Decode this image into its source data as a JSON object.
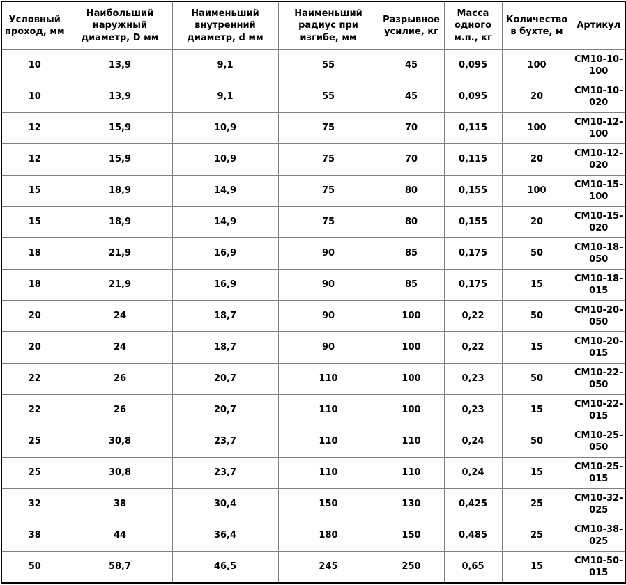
{
  "table": {
    "columns": [
      {
        "key": "bore",
        "label": "Условный проход, мм"
      },
      {
        "key": "outer-diameter",
        "label": "Наибольший наружный диаметр, D мм"
      },
      {
        "key": "inner-diameter",
        "label": "Наименьший внутренний диаметр, d мм"
      },
      {
        "key": "bend-radius",
        "label": "Наименьший радиус при изгибе, мм"
      },
      {
        "key": "breaking-force",
        "label": "Разрывное усилие, кг"
      },
      {
        "key": "mass-per-meter",
        "label": "Масса одного м.п., кг"
      },
      {
        "key": "coil-length",
        "label": "Количество в бухте, м"
      },
      {
        "key": "sku",
        "label": "Артикул"
      }
    ],
    "rows": [
      [
        "10",
        "13,9",
        "9,1",
        "55",
        "45",
        "0,095",
        "100",
        "СМ10-10-100"
      ],
      [
        "10",
        "13,9",
        "9,1",
        "55",
        "45",
        "0,095",
        "20",
        "СМ10-10-020"
      ],
      [
        "12",
        "15,9",
        "10,9",
        "75",
        "70",
        "0,115",
        "100",
        "СМ10-12-100"
      ],
      [
        "12",
        "15,9",
        "10,9",
        "75",
        "70",
        "0,115",
        "20",
        "СМ10-12-020"
      ],
      [
        "15",
        "18,9",
        "14,9",
        "75",
        "80",
        "0,155",
        "100",
        "СМ10-15-100"
      ],
      [
        "15",
        "18,9",
        "14,9",
        "75",
        "80",
        "0,155",
        "20",
        "СМ10-15-020"
      ],
      [
        "18",
        "21,9",
        "16,9",
        "90",
        "85",
        "0,175",
        "50",
        "СМ10-18-050"
      ],
      [
        "18",
        "21,9",
        "16,9",
        "90",
        "85",
        "0,175",
        "15",
        "СМ10-18-015"
      ],
      [
        "20",
        "24",
        "18,7",
        "90",
        "100",
        "0,22",
        "50",
        "СМ10-20-050"
      ],
      [
        "20",
        "24",
        "18,7",
        "90",
        "100",
        "0,22",
        "15",
        "СМ10-20-015"
      ],
      [
        "22",
        "26",
        "20,7",
        "110",
        "100",
        "0,23",
        "50",
        "СМ10-22-050"
      ],
      [
        "22",
        "26",
        "20,7",
        "110",
        "100",
        "0,23",
        "15",
        "СМ10-22-015"
      ],
      [
        "25",
        "30,8",
        "23,7",
        "110",
        "110",
        "0,24",
        "50",
        "СМ10-25-050"
      ],
      [
        "25",
        "30,8",
        "23,7",
        "110",
        "110",
        "0,24",
        "15",
        "СМ10-25-015"
      ],
      [
        "32",
        "38",
        "30,4",
        "150",
        "130",
        "0,425",
        "25",
        "СМ10-32-025"
      ],
      [
        "38",
        "44",
        "36,4",
        "180",
        "150",
        "0,485",
        "25",
        "СМ10-38-025"
      ],
      [
        "50",
        "58,7",
        "46,5",
        "245",
        "250",
        "0,65",
        "15",
        "СМ10-50-015"
      ]
    ]
  },
  "colors": {
    "grid_line": "#808080",
    "outer_border": "#000000",
    "text": "#000000",
    "background": "#ffffff"
  }
}
